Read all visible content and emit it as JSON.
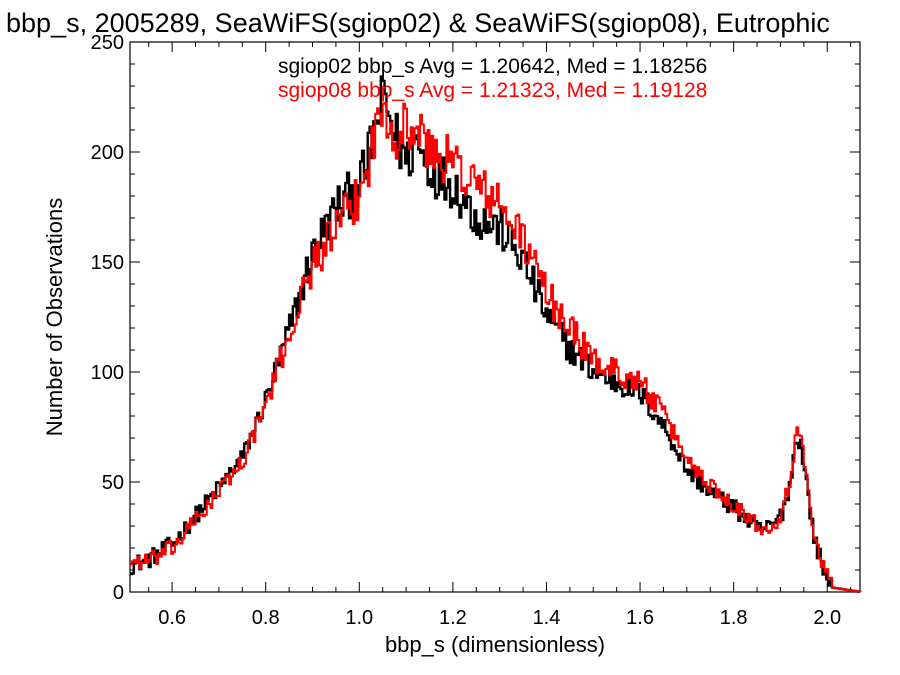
{
  "chart_data": {
    "type": "line",
    "title": "bbp_s, 2005289, SeaWiFS(sgiop02) & SeaWiFS(sgiop08), Eutrophic",
    "xlabel": "bbp_s (dimensionless)",
    "ylabel": "Number of Observations",
    "xlim": [
      0.51,
      2.07
    ],
    "ylim": [
      0,
      250
    ],
    "xticks": [
      "0.6",
      "0.8",
      "1.0",
      "1.2",
      "1.4",
      "1.6",
      "1.8",
      "2.0"
    ],
    "yticks": [
      "0",
      "50",
      "100",
      "150",
      "200",
      "250"
    ],
    "grid": false,
    "series": [
      {
        "name": "sgiop02",
        "color": "#000000",
        "stats_label": "sgiop02 bbp_s Avg = 1.20642, Med = 1.18256",
        "x": [
          0.51,
          0.55,
          0.6,
          0.65,
          0.7,
          0.75,
          0.8,
          0.85,
          0.9,
          0.95,
          1.0,
          1.02,
          1.05,
          1.08,
          1.1,
          1.12,
          1.15,
          1.2,
          1.25,
          1.3,
          1.35,
          1.4,
          1.45,
          1.5,
          1.55,
          1.6,
          1.65,
          1.7,
          1.75,
          1.8,
          1.85,
          1.88,
          1.9,
          1.92,
          1.93,
          1.94,
          1.95,
          1.97,
          1.99,
          2.01,
          2.07
        ],
        "y": [
          12,
          15,
          22,
          35,
          48,
          62,
          88,
          120,
          155,
          175,
          185,
          200,
          225,
          205,
          195,
          205,
          192,
          185,
          170,
          165,
          150,
          125,
          110,
          100,
          95,
          90,
          75,
          55,
          45,
          38,
          28,
          30,
          35,
          50,
          68,
          70,
          55,
          25,
          10,
          2,
          0
        ]
      },
      {
        "name": "sgiop08",
        "color": "#ff0000",
        "stats_label": "sgiop08 bbp_s Avg = 1.21323, Med = 1.19128",
        "x": [
          0.51,
          0.55,
          0.6,
          0.65,
          0.7,
          0.75,
          0.8,
          0.85,
          0.9,
          0.95,
          1.0,
          1.02,
          1.05,
          1.08,
          1.1,
          1.12,
          1.15,
          1.2,
          1.25,
          1.3,
          1.35,
          1.4,
          1.45,
          1.5,
          1.55,
          1.6,
          1.65,
          1.7,
          1.75,
          1.8,
          1.85,
          1.88,
          1.9,
          1.92,
          1.93,
          1.94,
          1.95,
          1.97,
          1.99,
          2.01,
          2.07
        ],
        "y": [
          14,
          14,
          20,
          33,
          46,
          60,
          86,
          118,
          150,
          165,
          180,
          198,
          222,
          208,
          212,
          210,
          200,
          195,
          185,
          175,
          160,
          135,
          120,
          105,
          100,
          95,
          80,
          60,
          48,
          40,
          30,
          30,
          36,
          52,
          70,
          72,
          58,
          27,
          12,
          2,
          0
        ]
      }
    ]
  }
}
